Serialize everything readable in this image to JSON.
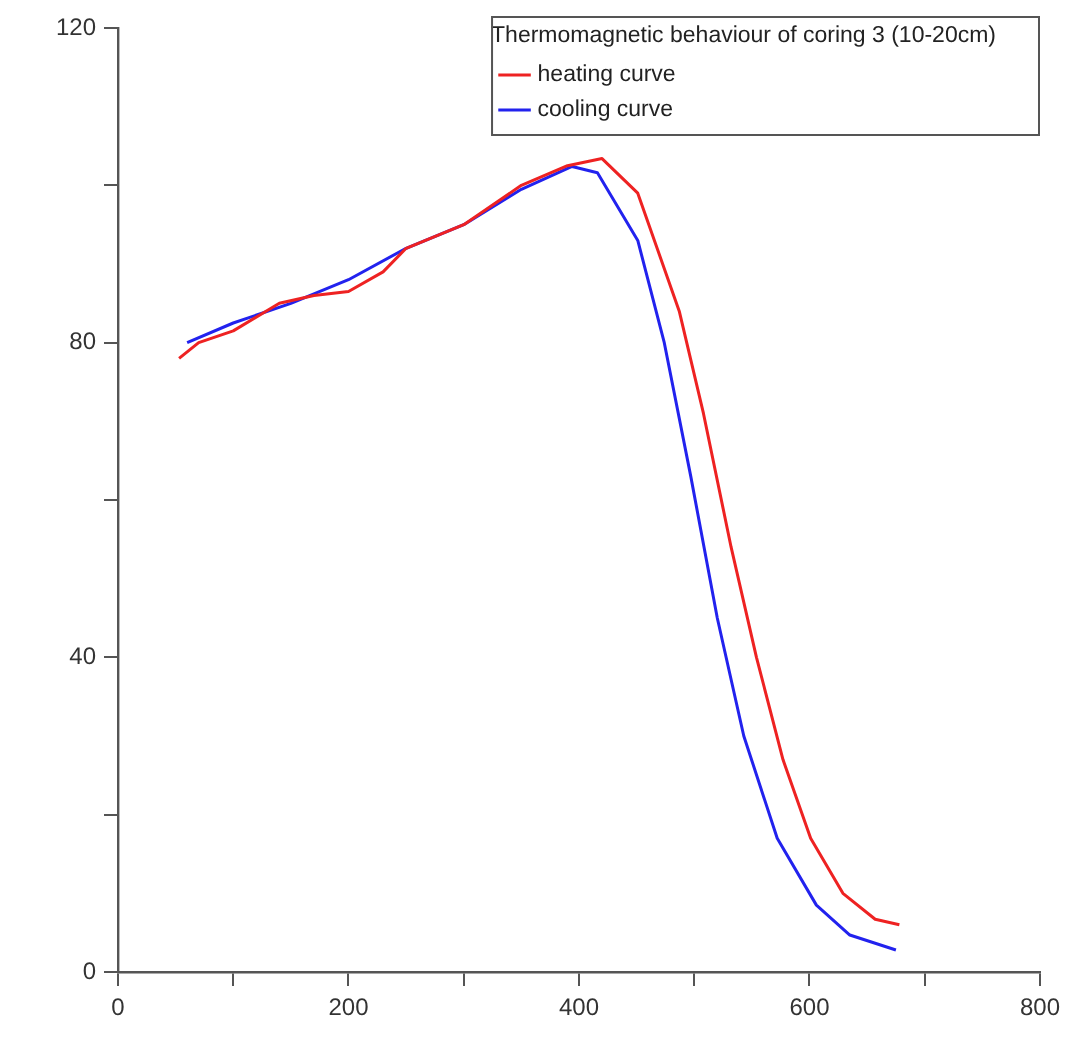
{
  "chart_data": {
    "type": "line",
    "legend_title": "Thermomagnetic behaviour of coring 3 (10-20cm)",
    "legend": "top right",
    "grid": false,
    "marker": "none",
    "line_style": "solid",
    "xlim": [
      0,
      800
    ],
    "xticks": [
      0,
      {
        "value": 100,
        "label": null
      },
      200,
      {
        "value": 300,
        "label": null
      },
      400,
      {
        "value": 500,
        "label": null
      },
      600,
      {
        "value": 700,
        "label": null
      },
      800
    ],
    "ylim": [
      0,
      120
    ],
    "yticks": [
      0,
      {
        "value": 20,
        "label": null
      },
      40,
      {
        "value": 60,
        "label": null
      },
      80,
      {
        "value": 100,
        "label": null
      },
      120
    ],
    "series": [
      {
        "name": "heating curve",
        "color": "#ee2222",
        "x": [
          53,
          70,
          100,
          140,
          170,
          200,
          230,
          250,
          300,
          350,
          390,
          420,
          451,
          487,
          508,
          532,
          554,
          577,
          601,
          629,
          657,
          678
        ],
        "values": [
          78,
          80,
          81.5,
          85,
          86,
          86.5,
          89,
          92,
          95,
          100,
          102.5,
          103.4,
          99,
          84,
          71,
          54,
          40,
          27,
          17,
          10,
          6.7,
          6
        ]
      },
      {
        "name": "cooling curve",
        "color": "#2222ee",
        "x": [
          60,
          100,
          150,
          200,
          250,
          300,
          350,
          394,
          416,
          451,
          474,
          497,
          520,
          543,
          572,
          606,
          635,
          675
        ],
        "values": [
          80,
          82.5,
          85,
          88,
          92,
          95,
          99.5,
          102.4,
          101.6,
          93,
          80,
          63,
          45,
          30,
          17,
          8.5,
          4.7,
          2.8
        ]
      }
    ]
  }
}
